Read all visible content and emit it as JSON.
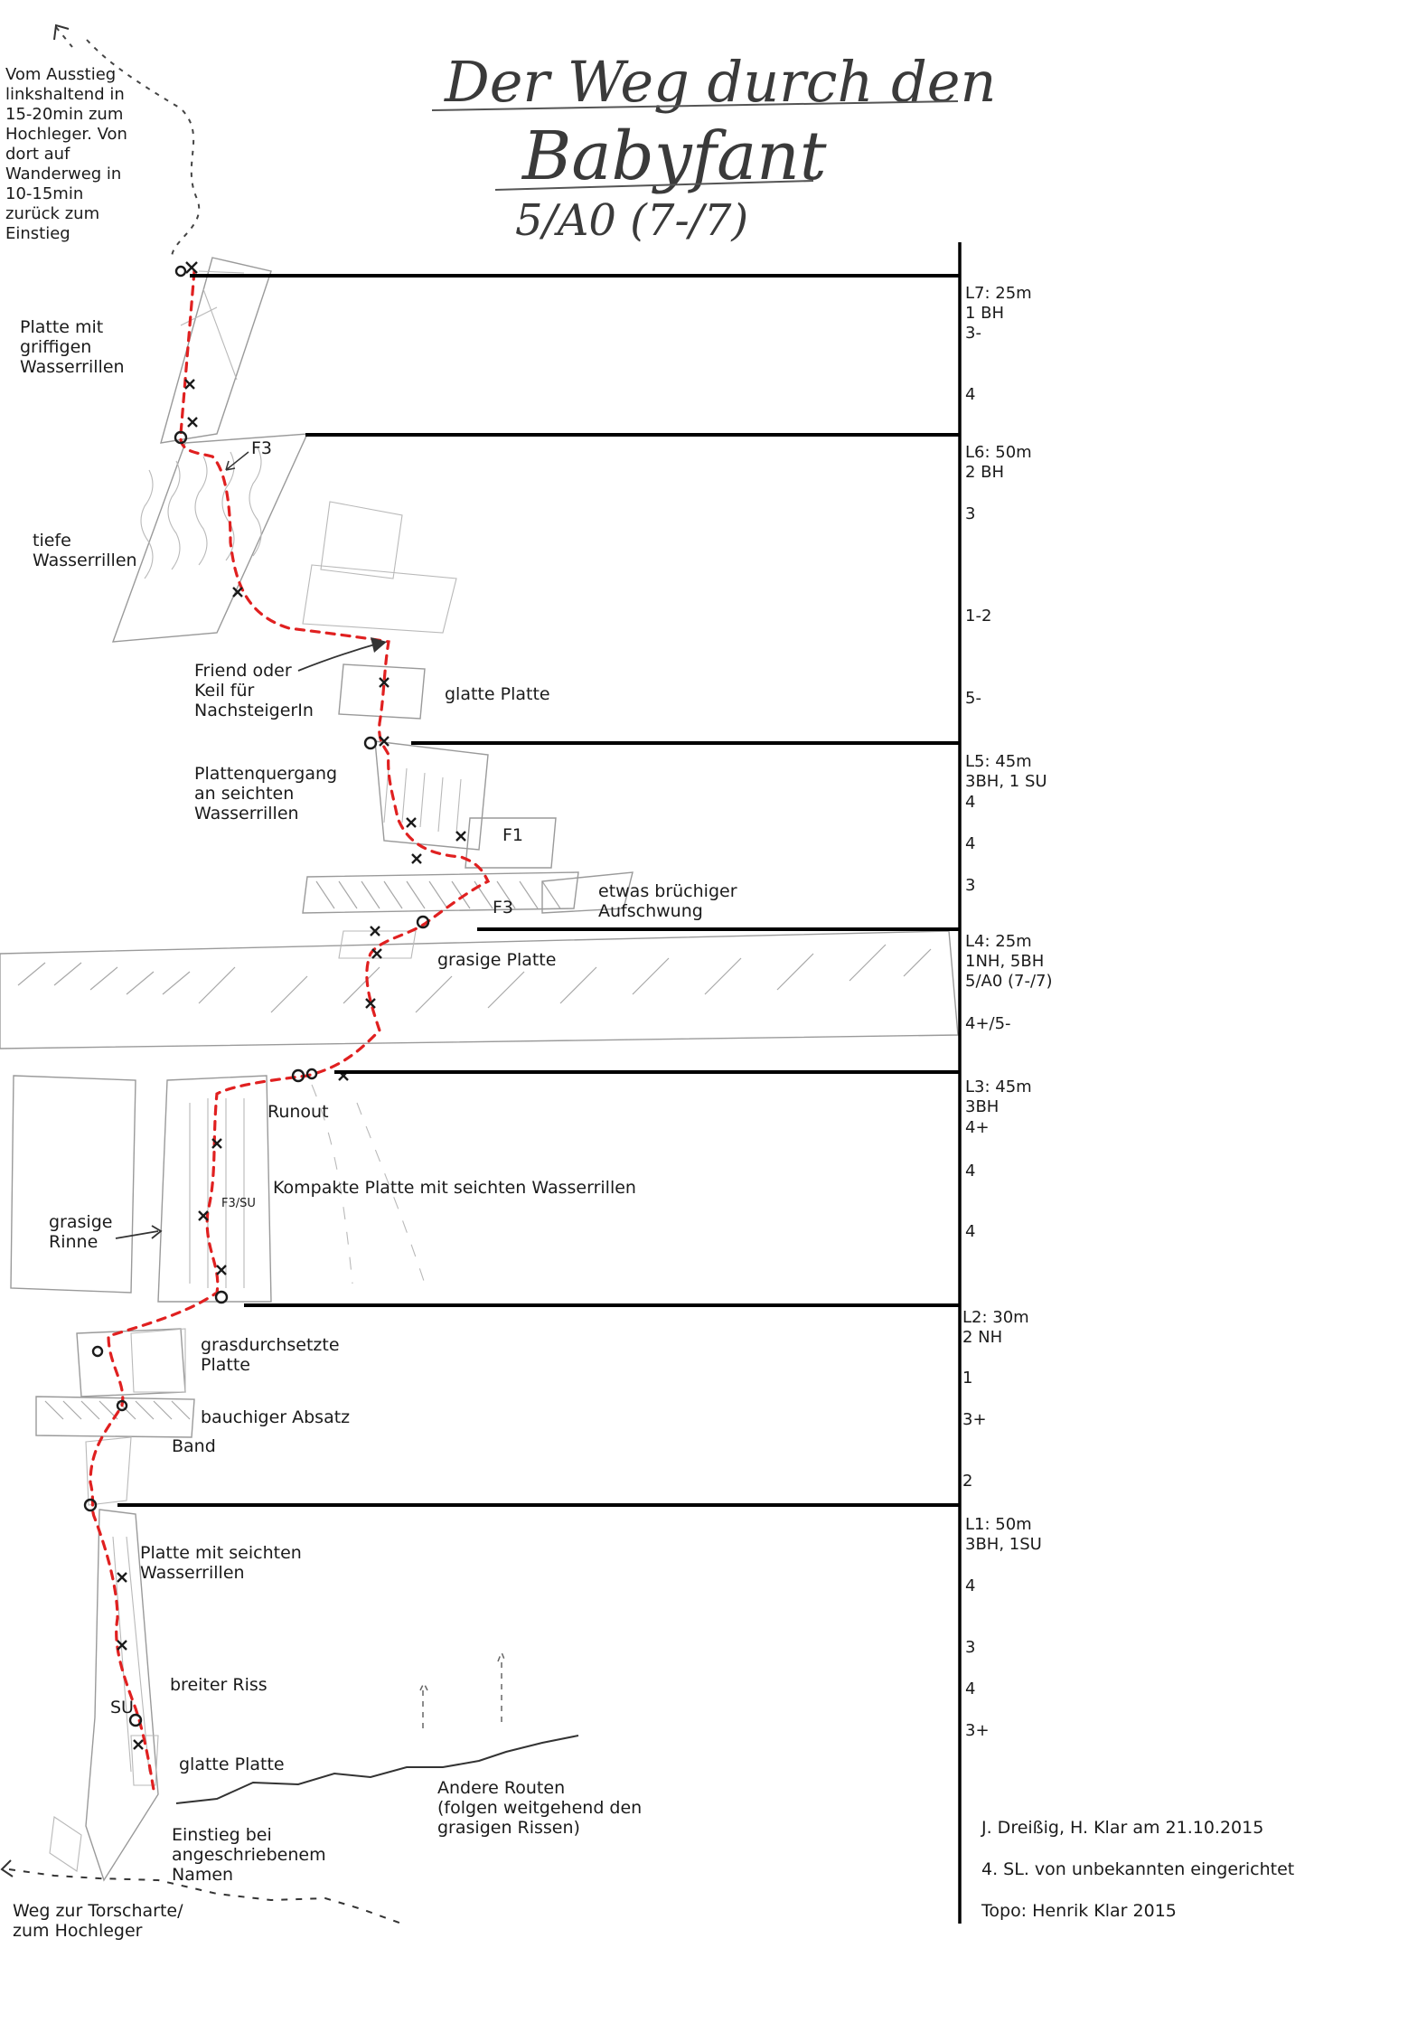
{
  "title": {
    "line1": "Der Weg durch den",
    "line2": "Babyfant",
    "grade": "5/A0  (7-/7)"
  },
  "top_note": [
    "Vom Ausstieg",
    "linkshaltend in",
    "15-20min zum",
    "Hochleger. Von",
    "dort auf",
    "Wanderweg in",
    "10-15min",
    "zurück zum",
    "Einstieg"
  ],
  "pitches": [
    {
      "name": "L7: 25m",
      "info": [
        "1 BH"
      ],
      "grades": [
        "3-",
        "4"
      ]
    },
    {
      "name": "L6: 50m",
      "info": [
        "2 BH"
      ],
      "grades": [
        "3",
        "1-2",
        "5-"
      ]
    },
    {
      "name": "L5: 45m",
      "info": [
        "3BH, 1 SU"
      ],
      "grades": [
        "4",
        "4",
        "3"
      ]
    },
    {
      "name": "L4: 25m",
      "info": [
        "1NH, 5BH",
        "5/A0 (7-/7)"
      ],
      "grades": [
        "4+/5-"
      ]
    },
    {
      "name": "L3: 45m",
      "info": [
        "3BH"
      ],
      "grades": [
        "4+",
        "4",
        "4"
      ]
    },
    {
      "name": "L2: 30m",
      "info": [
        "2 NH"
      ],
      "grades": [
        "1",
        "3+",
        "2"
      ]
    },
    {
      "name": "L1: 50m",
      "info": [
        "3BH, 1SU"
      ],
      "grades": [
        "4",
        "3",
        "4",
        "3+"
      ]
    }
  ],
  "annotations": {
    "platte_griffig": [
      "Platte mit",
      "griffigen",
      "Wasserrillen"
    ],
    "f3_top": "F3",
    "tiefe": [
      "tiefe",
      "Wasserrillen"
    ],
    "friend": [
      "Friend oder",
      "Keil für",
      "NachsteigerIn"
    ],
    "glatte_platte_1": "glatte Platte",
    "plattenquergang": [
      "Plattenquergang",
      "an seichten",
      "Wasserrillen"
    ],
    "f1": "F1",
    "f3_mid": "F3",
    "bruechig": [
      "etwas brüchiger",
      "Aufschwung"
    ],
    "grasige_platte": "grasige Platte",
    "runout": "Runout",
    "kompakte": "Kompakte Platte mit seichten Wasserrillen",
    "f3su": "F3/SU",
    "grasige_rinne": [
      "grasige",
      "Rinne"
    ],
    "grasdurch": [
      "grasdurchsetzte",
      "Platte"
    ],
    "bauchig": "bauchiger Absatz",
    "band": "Band",
    "platte_seicht": [
      "Platte mit seichten",
      "Wasserrillen"
    ],
    "breiter_riss": "breiter Riss",
    "su": "SU",
    "glatte_platte_2": "glatte Platte",
    "andere_routen": [
      "Andere Routen",
      "(folgen weitgehend den",
      "grasigen Rissen)"
    ],
    "einstieg": [
      "Einstieg bei",
      "angeschriebenem",
      "Namen"
    ],
    "weg": [
      "Weg zur Torscharte/",
      "zum Hochleger"
    ]
  },
  "credits": [
    "J. Dreißig, H. Klar am 21.10.2015",
    "4. SL. von unbekannten eingerichtet",
    "Topo: Henrik Klar 2015"
  ],
  "colors": {
    "route": "#e02020",
    "lines": "#000000",
    "sketch": "#9a9a9a"
  }
}
